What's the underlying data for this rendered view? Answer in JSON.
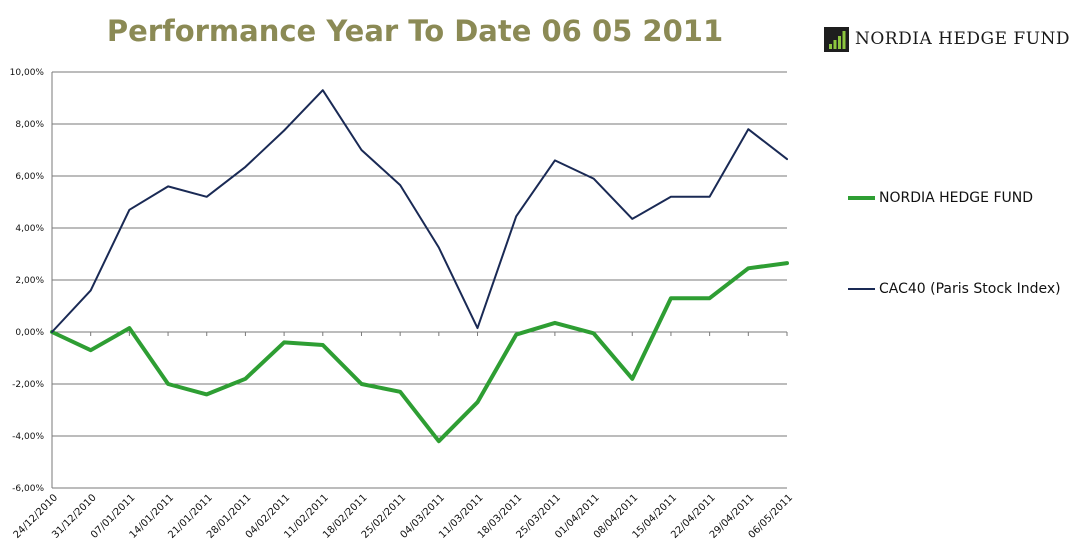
{
  "title": "Performance Year To Date 06 05 2011",
  "logo": {
    "text": "NORDIA HEDGE FUND",
    "icon": "bar-chart-logo-icon"
  },
  "colors": {
    "nordia": "#2e9e33",
    "cac40": "#1a2a55",
    "title": "#8b8a55",
    "grid": "#7a7a7a"
  },
  "chart_data": {
    "type": "line",
    "title": "Performance Year To Date 06 05 2011",
    "xlabel": "",
    "ylabel": "",
    "ylim": [
      -6,
      10
    ],
    "yticks": [
      10,
      8,
      6,
      4,
      2,
      0,
      -2,
      -4,
      -6
    ],
    "ytick_labels": [
      "10,00%",
      "8,00%",
      "6,00%",
      "4,00%",
      "2,00%",
      "0,00%",
      "-2,00%",
      "-4,00%",
      "-6,00%"
    ],
    "grid": true,
    "legend_position": "right",
    "categories": [
      "24/12/2010",
      "31/12/2010",
      "07/01/2011",
      "14/01/2011",
      "21/01/2011",
      "28/01/2011",
      "04/02/2011",
      "11/02/2011",
      "18/02/2011",
      "25/02/2011",
      "04/03/2011",
      "11/03/2011",
      "18/03/2011",
      "25/03/2011",
      "01/04/2011",
      "08/04/2011",
      "15/04/2011",
      "22/04/2011",
      "29/04/2011",
      "06/05/2011"
    ],
    "series": [
      {
        "name": "NORDIA HEDGE FUND",
        "color": "#2e9e33",
        "values": [
          0.0,
          -0.7,
          0.15,
          -2.0,
          -2.4,
          -1.8,
          -0.4,
          -0.5,
          -2.0,
          -2.3,
          -4.2,
          -2.7,
          -0.1,
          0.35,
          -0.05,
          -1.8,
          1.3,
          1.3,
          2.45,
          2.65
        ]
      },
      {
        "name": "CAC40 (Paris Stock Index)",
        "color": "#1a2a55",
        "values": [
          0.0,
          1.6,
          4.7,
          5.6,
          5.2,
          6.35,
          7.75,
          9.3,
          7.0,
          5.65,
          3.25,
          0.15,
          4.45,
          6.6,
          5.9,
          4.35,
          5.2,
          5.2,
          7.8,
          6.65
        ]
      }
    ]
  }
}
